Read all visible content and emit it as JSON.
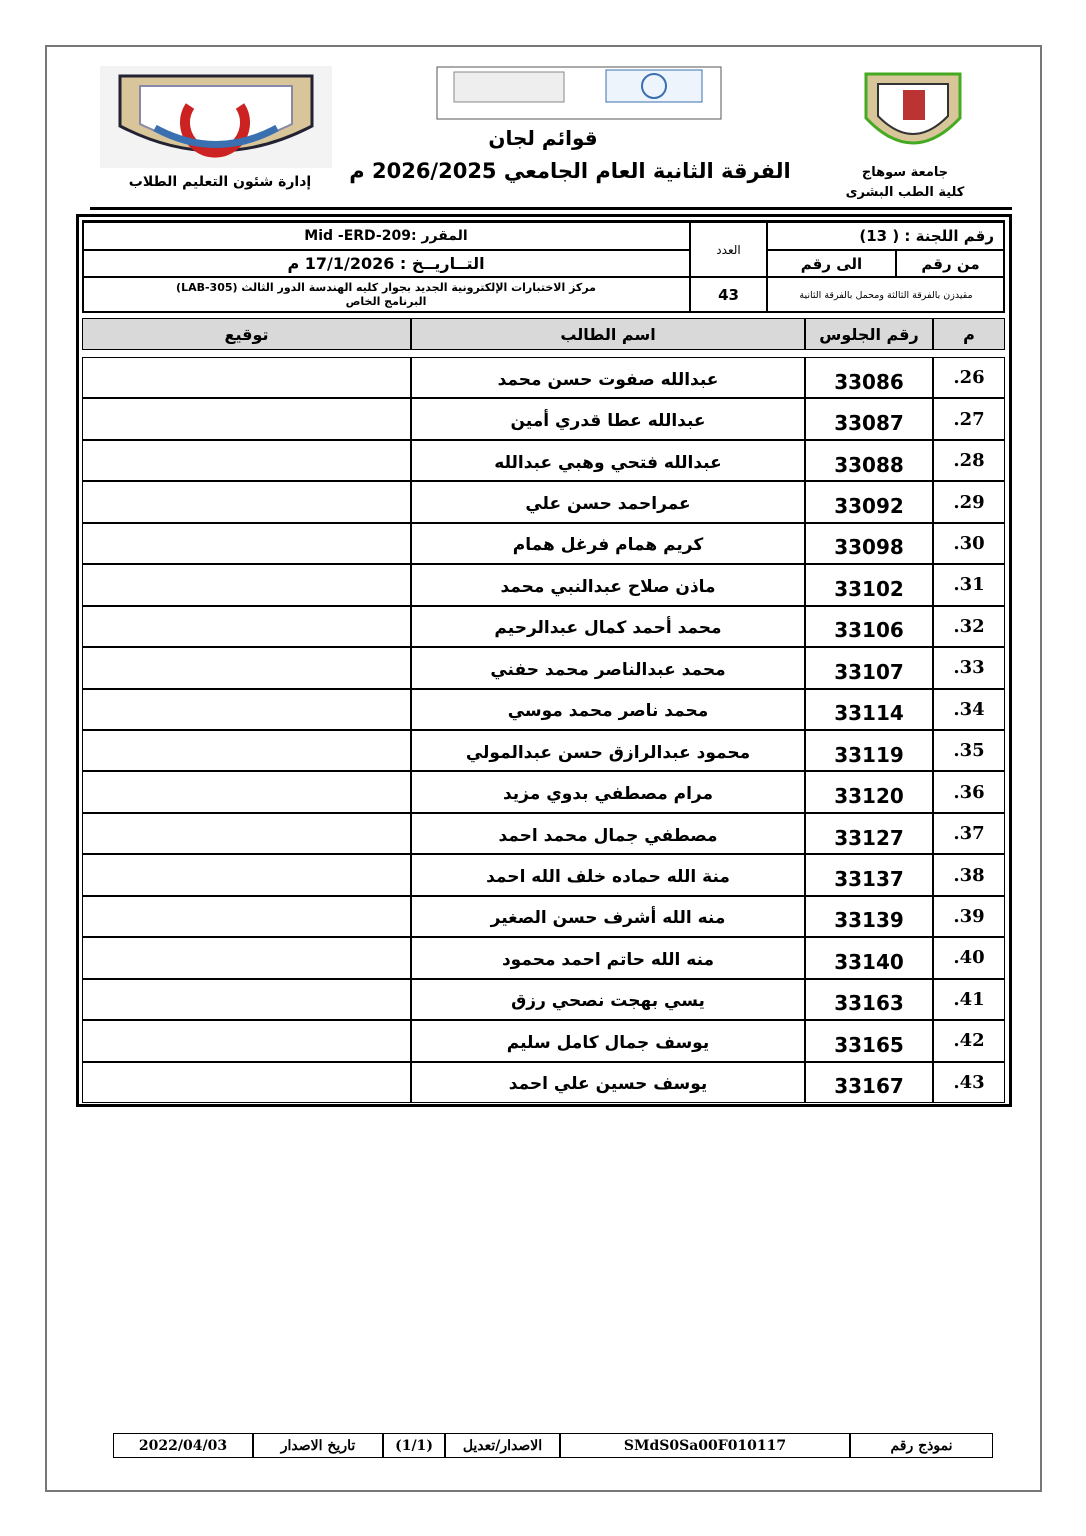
{
  "header": {
    "university": "جامعة سوهاج",
    "faculty": "كلية الطب البشرى",
    "title": "قوائم لجان",
    "subtitle": "الفرقة الثانية العام الجامعي 2026/2025 م",
    "department": "إدارة شئون التعليم الطلاب"
  },
  "info": {
    "committee": "رقم اللجنة : ( 13)",
    "from_label": "من رقم",
    "to_label": "الى رقم",
    "note": "مقيدزن بالفرقة الثالثة ومحمل بالفرقة الثانية",
    "count_label": "العدد",
    "count": "43",
    "course": "المقرر :Mid -ERD-209",
    "date": "التــاريــخ : 17/1/2026 م",
    "location": "مركز الاختبارات الإلكترونية الجديد بجوار كليه الهندسة الدور الثالث (LAB-305)",
    "program": "البرنامج الخاص"
  },
  "table": {
    "headers": [
      "م",
      "رقم الجلوس",
      "اسم الطالب",
      "توقيع"
    ],
    "rows": [
      [
        "26.",
        "33086",
        "عبدالله صفوت حسن محمد"
      ],
      [
        "27.",
        "33087",
        "عبدالله عطا قدري أمين"
      ],
      [
        "28.",
        "33088",
        "عبدالله فتحي وهبي عبدالله"
      ],
      [
        "29.",
        "33092",
        "عمراحمد حسن علي"
      ],
      [
        "30.",
        "33098",
        "كريم همام فرغل همام"
      ],
      [
        "31.",
        "33102",
        "ماذن صلاح عبدالنبي محمد"
      ],
      [
        "32.",
        "33106",
        "محمد أحمد كمال عبدالرحيم"
      ],
      [
        "33.",
        "33107",
        "محمد عبدالناصر محمد حفني"
      ],
      [
        "34.",
        "33114",
        "محمد ناصر محمد موسي"
      ],
      [
        "35.",
        "33119",
        "محمود عبدالرازق حسن عبدالمولي"
      ],
      [
        "36.",
        "33120",
        "مرام مصطفي بدوي مزيد"
      ],
      [
        "37.",
        "33127",
        "مصطفي جمال محمد احمد"
      ],
      [
        "38.",
        "33137",
        "منة الله حماده خلف الله احمد"
      ],
      [
        "39.",
        "33139",
        "منه الله أشرف حسن الصغير"
      ],
      [
        "40.",
        "33140",
        "منه الله حاتم احمد محمود"
      ],
      [
        "41.",
        "33163",
        "يسي بهجت نصحي رزق"
      ],
      [
        "42.",
        "33165",
        "يوسف جمال كامل سليم"
      ],
      [
        "43.",
        "33167",
        "يوسف حسين علي احمد"
      ]
    ]
  },
  "footer": {
    "form_label": "نموذج رقم",
    "form_number": "SMdS0Sa00F010117",
    "version_label": "الاصدار/تعديل",
    "version": "(1/1)",
    "date_label": "تاريخ الاصدار",
    "date": "2022/04/03"
  }
}
